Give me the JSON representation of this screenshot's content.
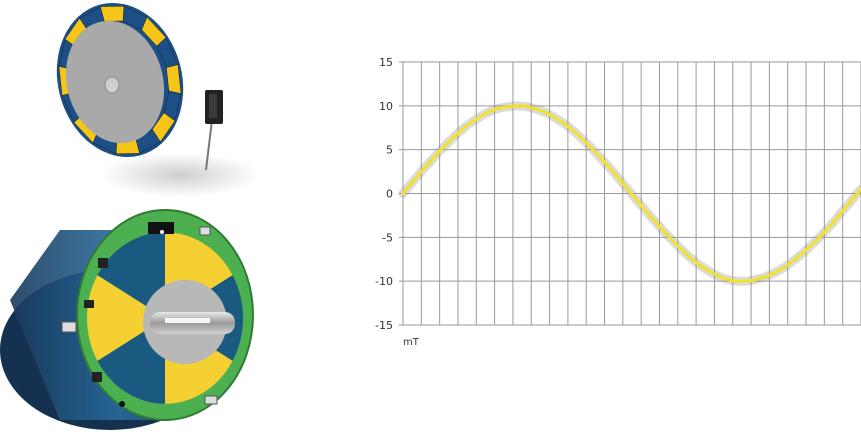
{
  "chart_data": {
    "type": "line",
    "title": "",
    "xlabel": "",
    "ylabel": "mT",
    "ylim": [
      -15,
      15
    ],
    "yticks": [
      15,
      10,
      5,
      0,
      -5,
      -10,
      -15
    ],
    "grid": true,
    "series": [
      {
        "color": "#f2e22a",
        "x": [
          0,
          1,
          2,
          3,
          4,
          5,
          6,
          7,
          8,
          9,
          10,
          11,
          12,
          13,
          14,
          15,
          16,
          17,
          18,
          19,
          20,
          21,
          22,
          23,
          24,
          25,
          26,
          27,
          28,
          29,
          30,
          31,
          32,
          33,
          34,
          35,
          36,
          37,
          38,
          39,
          40,
          41,
          42,
          43,
          44,
          45,
          46,
          47,
          48
        ],
        "values": [
          0,
          1.3,
          2.6,
          3.8,
          5.0,
          6.1,
          7.1,
          8.0,
          8.7,
          9.3,
          9.7,
          9.9,
          10.0,
          9.9,
          9.6,
          9.2,
          8.6,
          7.9,
          7.0,
          6.0,
          4.9,
          3.7,
          2.5,
          1.2,
          -0.1,
          -1.4,
          -2.7,
          -3.9,
          -5.1,
          -6.2,
          -7.2,
          -8.1,
          -8.8,
          -9.4,
          -9.8,
          -10.0,
          -10.0,
          -9.8,
          -9.5,
          -9.0,
          -8.4,
          -7.6,
          -6.7,
          -5.7,
          -4.6,
          -3.4,
          -2.1,
          -0.8,
          0.5
        ]
      }
    ]
  },
  "illustration": {
    "encoder_wheel_colors": [
      "#f5c518",
      "#1d4f86"
    ],
    "housing_color": "#1f4f7a",
    "pcb_color": "#4caf50",
    "shaft_color": "#b8b8b8",
    "sensor_color": "#222222"
  }
}
